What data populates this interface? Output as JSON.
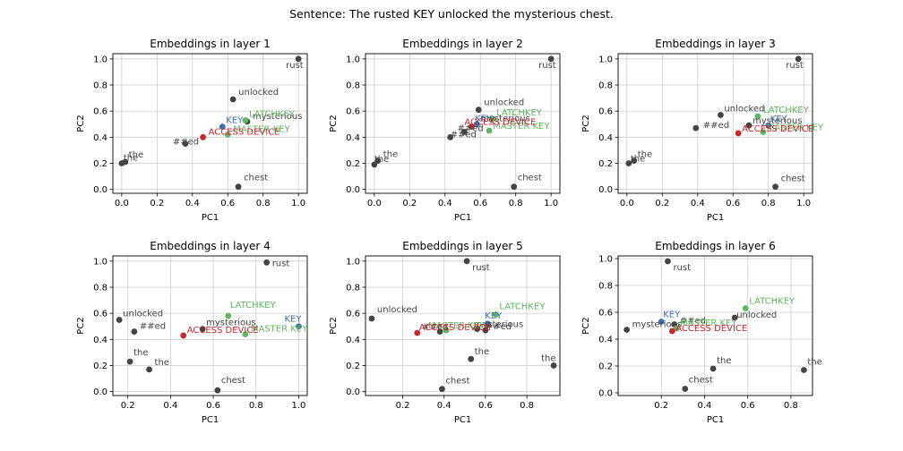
{
  "figure": {
    "suptitle": "Sentence: The rusted KEY unlocked the mysterious chest."
  },
  "colors": {
    "default": "#444444",
    "default_label": "#444444",
    "KEY": "#3a6fb0",
    "LATCHKEY": "#5cb85c",
    "MASTER KEY": "#5cb85c",
    "ACCESS DEVICE": "#c9252b",
    "grid": "#cccccc",
    "axis": "#000000"
  },
  "chart_data": [
    {
      "type": "scatter",
      "title": "Embeddings in layer 1",
      "xlabel": "PC1",
      "ylabel": "PC2",
      "xlim": [
        -0.05,
        1.05
      ],
      "ylim": [
        -0.03,
        1.04
      ],
      "xticks": [
        0.0,
        0.2,
        0.4,
        0.6,
        0.8,
        1.0
      ],
      "yticks": [
        0.0,
        0.2,
        0.4,
        0.6,
        0.8,
        1.0
      ],
      "grid": true,
      "points": [
        {
          "label": "rust",
          "x": 1.0,
          "y": 1.0
        },
        {
          "label": "unlocked",
          "x": 0.63,
          "y": 0.69
        },
        {
          "label": "mysterious",
          "x": 0.71,
          "y": 0.52
        },
        {
          "label": "KEY",
          "x": 0.57,
          "y": 0.48
        },
        {
          "label": "LATCHKEY",
          "x": 0.7,
          "y": 0.53
        },
        {
          "label": "MASTER KEY",
          "x": 0.6,
          "y": 0.42
        },
        {
          "label": "ACCESS DEVICE",
          "x": 0.46,
          "y": 0.4
        },
        {
          "label": "##ed",
          "x": 0.36,
          "y": 0.35
        },
        {
          "label": "the",
          "x": 0.02,
          "y": 0.21
        },
        {
          "label": "the",
          "x": 0.0,
          "y": 0.2
        },
        {
          "label": "chest",
          "x": 0.66,
          "y": 0.02
        }
      ]
    },
    {
      "type": "scatter",
      "title": "Embeddings in layer 2",
      "xlabel": "PC1",
      "ylabel": "PC2",
      "xlim": [
        -0.05,
        1.05
      ],
      "ylim": [
        -0.03,
        1.04
      ],
      "xticks": [
        0.0,
        0.2,
        0.4,
        0.6,
        0.8,
        1.0
      ],
      "yticks": [
        0.0,
        0.2,
        0.4,
        0.6,
        0.8,
        1.0
      ],
      "grid": true,
      "points": [
        {
          "label": "rust",
          "x": 1.0,
          "y": 1.0
        },
        {
          "label": "unlocked",
          "x": 0.59,
          "y": 0.61
        },
        {
          "label": "LATCHKEY",
          "x": 0.67,
          "y": 0.54
        },
        {
          "label": "mysterious",
          "x": 0.58,
          "y": 0.5
        },
        {
          "label": "KEY",
          "x": 0.58,
          "y": 0.5
        },
        {
          "label": "MASTER KEY",
          "x": 0.65,
          "y": 0.45
        },
        {
          "label": "ACCESS DEVICE",
          "x": 0.55,
          "y": 0.48
        },
        {
          "label": "##ed",
          "x": 0.51,
          "y": 0.44
        },
        {
          "label": "##ed",
          "x": 0.43,
          "y": 0.4
        },
        {
          "label": "the",
          "x": 0.02,
          "y": 0.22
        },
        {
          "label": "the",
          "x": 0.0,
          "y": 0.19
        },
        {
          "label": "chest",
          "x": 0.79,
          "y": 0.02
        }
      ]
    },
    {
      "type": "scatter",
      "title": "Embeddings in layer 3",
      "xlabel": "PC1",
      "ylabel": "PC2",
      "xlim": [
        -0.05,
        1.05
      ],
      "ylim": [
        -0.03,
        1.04
      ],
      "xticks": [
        0.0,
        0.2,
        0.4,
        0.6,
        0.8,
        1.0
      ],
      "yticks": [
        0.0,
        0.2,
        0.4,
        0.6,
        0.8,
        1.0
      ],
      "grid": true,
      "points": [
        {
          "label": "rust",
          "x": 0.97,
          "y": 1.0
        },
        {
          "label": "unlocked",
          "x": 0.53,
          "y": 0.57
        },
        {
          "label": "LATCHKEY",
          "x": 0.74,
          "y": 0.56
        },
        {
          "label": "mysterious",
          "x": 0.69,
          "y": 0.49
        },
        {
          "label": "KEY",
          "x": 0.8,
          "y": 0.49
        },
        {
          "label": "MASTER KEY",
          "x": 0.77,
          "y": 0.44
        },
        {
          "label": "ACCESS DEVICE",
          "x": 0.63,
          "y": 0.43
        },
        {
          "label": "##ed",
          "x": 0.39,
          "y": 0.47
        },
        {
          "label": "the",
          "x": 0.04,
          "y": 0.22
        },
        {
          "label": "the",
          "x": 0.01,
          "y": 0.2
        },
        {
          "label": "chest",
          "x": 0.84,
          "y": 0.02
        }
      ]
    },
    {
      "type": "scatter",
      "title": "Embeddings in layer 4",
      "xlabel": "PC1",
      "ylabel": "PC2",
      "xlim": [
        0.13,
        1.04
      ],
      "ylim": [
        -0.03,
        1.04
      ],
      "xticks": [
        0.2,
        0.4,
        0.6,
        0.8,
        1.0
      ],
      "yticks": [
        0.0,
        0.2,
        0.4,
        0.6,
        0.8,
        1.0
      ],
      "grid": true,
      "points": [
        {
          "label": "rust",
          "x": 0.85,
          "y": 0.99
        },
        {
          "label": "LATCHKEY",
          "x": 0.67,
          "y": 0.58
        },
        {
          "label": "unlocked",
          "x": 0.16,
          "y": 0.55
        },
        {
          "label": "##ed",
          "x": 0.23,
          "y": 0.46
        },
        {
          "label": "mysterious",
          "x": 0.55,
          "y": 0.48
        },
        {
          "label": "KEY",
          "x": 1.0,
          "y": 0.5
        },
        {
          "label": "MASTER KEY",
          "x": 0.75,
          "y": 0.44
        },
        {
          "label": "ACCESS DEVICE",
          "x": 0.46,
          "y": 0.43
        },
        {
          "label": "the",
          "x": 0.21,
          "y": 0.23
        },
        {
          "label": "the",
          "x": 0.3,
          "y": 0.17
        },
        {
          "label": "chest",
          "x": 0.62,
          "y": 0.01
        }
      ]
    },
    {
      "type": "scatter",
      "title": "Embeddings in layer 5",
      "xlabel": "PC1",
      "ylabel": "PC2",
      "xlim": [
        0.02,
        0.96
      ],
      "ylim": [
        -0.03,
        1.04
      ],
      "xticks": [
        0.2,
        0.4,
        0.6,
        0.8
      ],
      "yticks": [
        0.0,
        0.2,
        0.4,
        0.6,
        0.8,
        1.0
      ],
      "grid": true,
      "points": [
        {
          "label": "rust",
          "x": 0.51,
          "y": 1.0
        },
        {
          "label": "LATCHKEY",
          "x": 0.65,
          "y": 0.59
        },
        {
          "label": "unlocked",
          "x": 0.05,
          "y": 0.56
        },
        {
          "label": "KEY",
          "x": 0.61,
          "y": 0.52
        },
        {
          "label": "##ed",
          "x": 0.6,
          "y": 0.47
        },
        {
          "label": "mysterious",
          "x": 0.56,
          "y": 0.48
        },
        {
          "label": "MASTER KEY",
          "x": 0.41,
          "y": 0.47
        },
        {
          "label": "##ed",
          "x": 0.38,
          "y": 0.46
        },
        {
          "label": "ACCESS DEVICE",
          "x": 0.27,
          "y": 0.45
        },
        {
          "label": "the",
          "x": 0.53,
          "y": 0.25
        },
        {
          "label": "the",
          "x": 0.93,
          "y": 0.2
        },
        {
          "label": "chest",
          "x": 0.39,
          "y": 0.02
        }
      ]
    },
    {
      "type": "scatter",
      "title": "Embeddings in layer 6",
      "xlabel": "PC1",
      "ylabel": "PC2",
      "xlim": [
        0.0,
        0.9
      ],
      "ylim": [
        -0.02,
        1.02
      ],
      "xticks": [
        0.2,
        0.4,
        0.6,
        0.8
      ],
      "yticks": [
        0.0,
        0.2,
        0.4,
        0.6,
        0.8,
        1.0
      ],
      "grid": true,
      "points": [
        {
          "label": "rust",
          "x": 0.23,
          "y": 0.98
        },
        {
          "label": "LATCHKEY",
          "x": 0.59,
          "y": 0.63
        },
        {
          "label": "unlocked",
          "x": 0.54,
          "y": 0.56
        },
        {
          "label": "KEY",
          "x": 0.2,
          "y": 0.53
        },
        {
          "label": "##ed",
          "x": 0.26,
          "y": 0.51
        },
        {
          "label": "mysterious",
          "x": 0.04,
          "y": 0.47
        },
        {
          "label": "MASTER KEY",
          "x": 0.27,
          "y": 0.48
        },
        {
          "label": "ACCESS DEVICE",
          "x": 0.25,
          "y": 0.46
        },
        {
          "label": "the",
          "x": 0.44,
          "y": 0.18
        },
        {
          "label": "the",
          "x": 0.86,
          "y": 0.17
        },
        {
          "label": "chest",
          "x": 0.31,
          "y": 0.03
        }
      ]
    }
  ]
}
